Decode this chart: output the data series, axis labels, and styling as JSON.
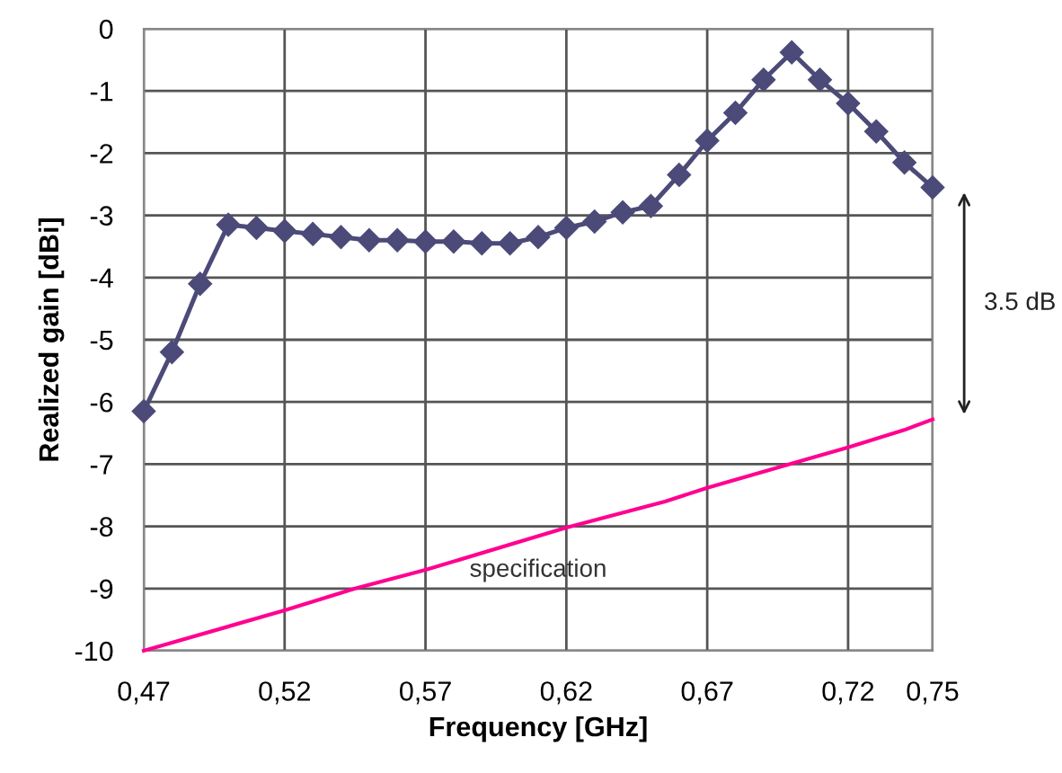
{
  "chart_data": {
    "type": "line",
    "xlabel": "Frequency [GHz]",
    "ylabel": "Realized gain [dBi]",
    "series": [
      {
        "color": "#4b4a78",
        "marker": "diamond",
        "x": [
          0.47,
          0.48,
          0.49,
          0.5,
          0.51,
          0.52,
          0.53,
          0.54,
          0.55,
          0.56,
          0.57,
          0.58,
          0.59,
          0.6,
          0.61,
          0.62,
          0.63,
          0.64,
          0.65,
          0.66,
          0.67,
          0.68,
          0.69,
          0.7,
          0.71,
          0.72,
          0.73,
          0.74,
          0.75
        ],
        "values": [
          -6.15,
          -5.2,
          -4.1,
          -3.15,
          -3.2,
          -3.25,
          -3.3,
          -3.35,
          -3.4,
          -3.4,
          -3.42,
          -3.42,
          -3.45,
          -3.45,
          -3.35,
          -3.2,
          -3.1,
          -2.95,
          -2.85,
          -2.35,
          -1.8,
          -1.35,
          -0.82,
          -0.38,
          -0.82,
          -1.2,
          -1.65,
          -2.15,
          -2.55
        ]
      },
      {
        "name": "specification",
        "color": "#ff0090",
        "marker": "none",
        "x": [
          0.47,
          0.52,
          0.545,
          0.57,
          0.62,
          0.655,
          0.67,
          0.72,
          0.74,
          0.75
        ],
        "values": [
          -10,
          -9.35,
          -9,
          -8.7,
          -8.02,
          -7.6,
          -7.38,
          -6.73,
          -6.45,
          -6.28
        ]
      }
    ],
    "annotations": [
      "3.5 dB"
    ],
    "xlim": [
      0.47,
      0.75
    ],
    "xticks": [
      {
        "value": 0.47,
        "label": "0,47"
      },
      {
        "value": 0.52,
        "label": "0,52"
      },
      {
        "value": 0.57,
        "label": "0,57"
      },
      {
        "value": 0.62,
        "label": "0,62"
      },
      {
        "value": 0.67,
        "label": "0,67"
      },
      {
        "value": 0.72,
        "label": "0,72"
      },
      {
        "value": 0.75,
        "label": "0,75"
      }
    ],
    "ylim": [
      -10,
      0
    ],
    "yticks": [
      -10,
      -9,
      -8,
      -7,
      -6,
      -5,
      -4,
      -3,
      -2,
      -1,
      0
    ],
    "grid": true,
    "legend": false,
    "line_style": "solid"
  }
}
